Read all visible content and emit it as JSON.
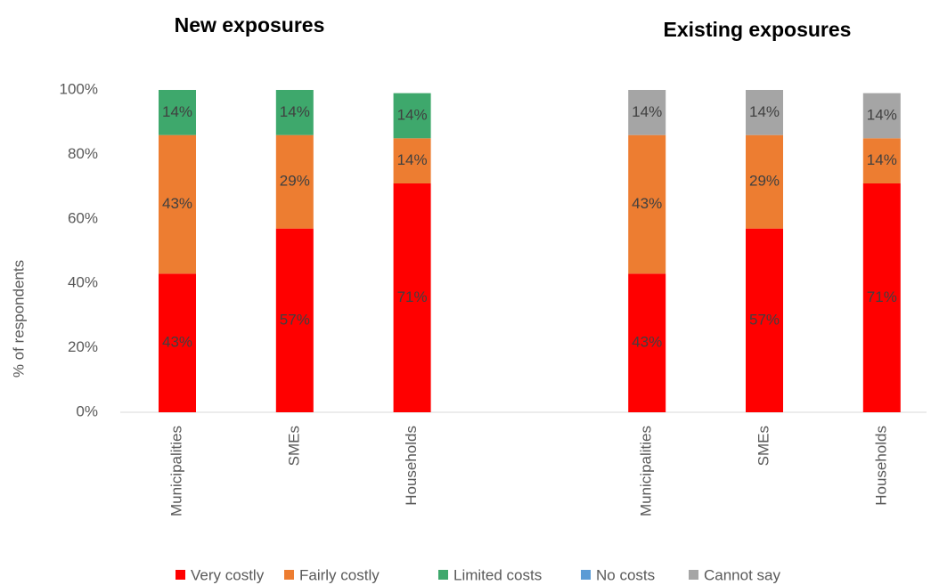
{
  "chart_data": {
    "type": "stacked_bar",
    "group_titles": [
      "New exposures",
      "Existing exposures"
    ],
    "y_label": "% of respondents",
    "categories": [
      "Municipalities",
      "SMEs",
      "Households",
      null,
      "Municipalities",
      "SMEs",
      "Households"
    ],
    "series": [
      {
        "name": "Very costly",
        "color": "#ff0000",
        "values": [
          43,
          57,
          71,
          null,
          43,
          57,
          71
        ],
        "value_labels": [
          "43%",
          "57%",
          "71%",
          null,
          "43%",
          "57%",
          "71%"
        ]
      },
      {
        "name": "Fairly costly",
        "color": "#ed7d31",
        "values": [
          43,
          29,
          14,
          null,
          43,
          29,
          14
        ],
        "value_labels": [
          "43%",
          "29%",
          "14%",
          null,
          "43%",
          "29%",
          "14%"
        ]
      },
      {
        "name": "Limited costs",
        "color": "#3ea86c",
        "values": [
          14,
          14,
          14,
          null,
          0,
          0,
          0
        ],
        "value_labels": [
          "14%",
          "14%",
          "14%",
          null,
          null,
          null,
          null
        ]
      },
      {
        "name": "No costs",
        "color": "#5b9bd5",
        "values": [
          0,
          0,
          0,
          null,
          0,
          0,
          0
        ],
        "value_labels": [
          null,
          null,
          null,
          null,
          null,
          null,
          null
        ]
      },
      {
        "name": "Cannot say",
        "color": "#a5a5a5",
        "values": [
          0,
          0,
          0,
          null,
          14,
          14,
          14
        ],
        "value_labels": [
          null,
          null,
          null,
          null,
          "14%",
          "14%",
          "14%"
        ]
      }
    ],
    "ylim": [
      0,
      100
    ],
    "yticks": [
      {
        "value": 0,
        "label": "0%"
      },
      {
        "value": 20,
        "label": "20%"
      },
      {
        "value": 40,
        "label": "40%"
      },
      {
        "value": 60,
        "label": "60%"
      },
      {
        "value": 80,
        "label": "80%"
      },
      {
        "value": 100,
        "label": "100%"
      }
    ],
    "legend": "bottom"
  }
}
